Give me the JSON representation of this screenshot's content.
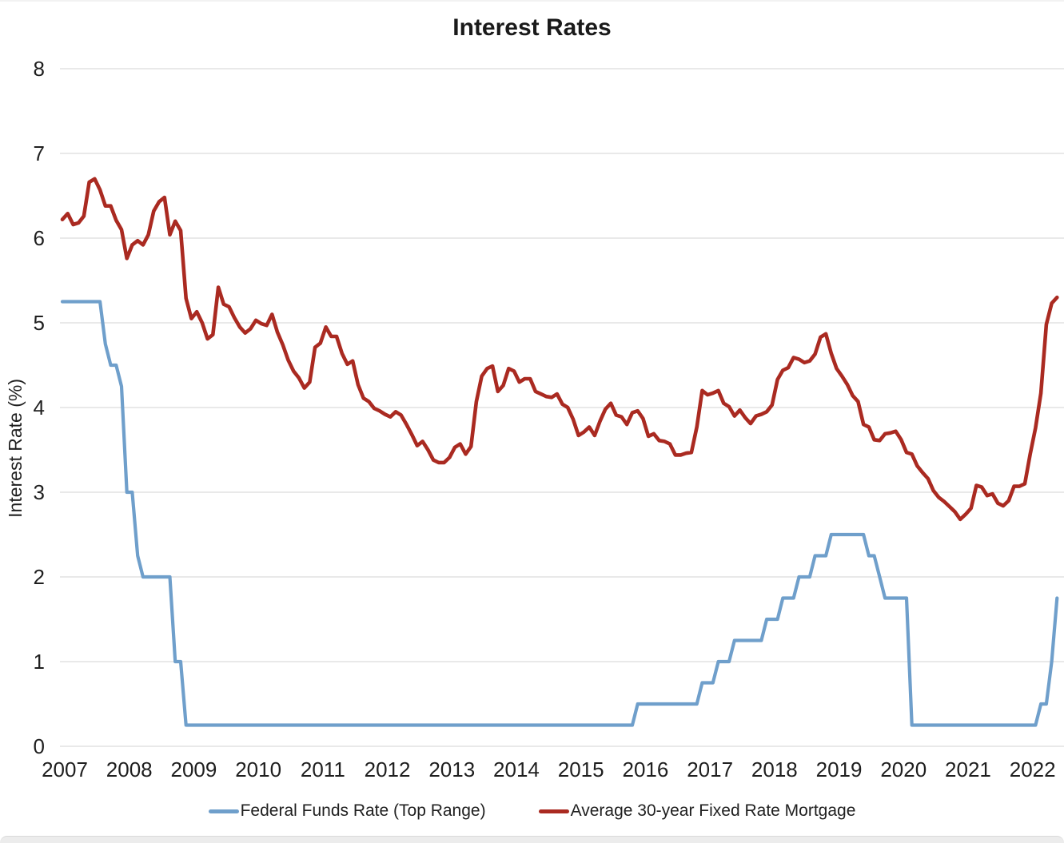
{
  "chart_data": {
    "type": "line",
    "title": "Interest Rates",
    "xlabel": "",
    "ylabel": "Interest Rate (%)",
    "ylim": [
      0,
      8
    ],
    "yticks": [
      0,
      1,
      2,
      3,
      4,
      5,
      6,
      7,
      8
    ],
    "x_tick_labels": [
      "2007",
      "2008",
      "2009",
      "2010",
      "2011",
      "2012",
      "2013",
      "2014",
      "2015",
      "2016",
      "2017",
      "2018",
      "2019",
      "2020",
      "2021",
      "2022"
    ],
    "x_unit": "month",
    "x_start": "2007-01",
    "x_end": "2022-06",
    "grid": "horizontal",
    "grid_color": "#e2e2e2",
    "legend_position": "bottom",
    "series": [
      {
        "name": "Federal Funds Rate (Top Range)",
        "color": "#6f9fcb",
        "values": [
          5.25,
          5.25,
          5.25,
          5.25,
          5.25,
          5.25,
          5.25,
          5.25,
          4.75,
          4.5,
          4.5,
          4.25,
          3,
          3,
          2.25,
          2,
          2,
          2,
          2,
          2,
          2,
          1,
          1,
          0.25,
          0.25,
          0.25,
          0.25,
          0.25,
          0.25,
          0.25,
          0.25,
          0.25,
          0.25,
          0.25,
          0.25,
          0.25,
          0.25,
          0.25,
          0.25,
          0.25,
          0.25,
          0.25,
          0.25,
          0.25,
          0.25,
          0.25,
          0.25,
          0.25,
          0.25,
          0.25,
          0.25,
          0.25,
          0.25,
          0.25,
          0.25,
          0.25,
          0.25,
          0.25,
          0.25,
          0.25,
          0.25,
          0.25,
          0.25,
          0.25,
          0.25,
          0.25,
          0.25,
          0.25,
          0.25,
          0.25,
          0.25,
          0.25,
          0.25,
          0.25,
          0.25,
          0.25,
          0.25,
          0.25,
          0.25,
          0.25,
          0.25,
          0.25,
          0.25,
          0.25,
          0.25,
          0.25,
          0.25,
          0.25,
          0.25,
          0.25,
          0.25,
          0.25,
          0.25,
          0.25,
          0.25,
          0.25,
          0.25,
          0.25,
          0.25,
          0.25,
          0.25,
          0.25,
          0.25,
          0.25,
          0.25,
          0.25,
          0.25,
          0.5,
          0.5,
          0.5,
          0.5,
          0.5,
          0.5,
          0.5,
          0.5,
          0.5,
          0.5,
          0.5,
          0.5,
          0.75,
          0.75,
          0.75,
          1,
          1,
          1,
          1.25,
          1.25,
          1.25,
          1.25,
          1.25,
          1.25,
          1.5,
          1.5,
          1.5,
          1.75,
          1.75,
          1.75,
          2,
          2,
          2,
          2.25,
          2.25,
          2.25,
          2.5,
          2.5,
          2.5,
          2.5,
          2.5,
          2.5,
          2.5,
          2.25,
          2.25,
          2,
          1.75,
          1.75,
          1.75,
          1.75,
          1.75,
          0.25,
          0.25,
          0.25,
          0.25,
          0.25,
          0.25,
          0.25,
          0.25,
          0.25,
          0.25,
          0.25,
          0.25,
          0.25,
          0.25,
          0.25,
          0.25,
          0.25,
          0.25,
          0.25,
          0.25,
          0.25,
          0.25,
          0.25,
          0.25,
          0.5,
          0.5,
          1,
          1.75
        ]
      },
      {
        "name": "Average 30-year Fixed Rate Mortgage",
        "color": "#aa2a21",
        "values": [
          6.22,
          6.29,
          6.16,
          6.18,
          6.26,
          6.66,
          6.7,
          6.57,
          6.38,
          6.38,
          6.21,
          6.1,
          5.76,
          5.92,
          5.97,
          5.92,
          6.04,
          6.32,
          6.43,
          6.48,
          6.04,
          6.2,
          6.09,
          5.29,
          5.05,
          5.13,
          5,
          4.81,
          4.86,
          5.42,
          5.22,
          5.19,
          5.06,
          4.95,
          4.88,
          4.93,
          5.03,
          4.99,
          4.97,
          5.1,
          4.89,
          4.74,
          4.56,
          4.43,
          4.35,
          4.23,
          4.3,
          4.71,
          4.76,
          4.95,
          4.84,
          4.84,
          4.64,
          4.51,
          4.55,
          4.27,
          4.11,
          4.07,
          3.99,
          3.96,
          3.92,
          3.89,
          3.95,
          3.91,
          3.8,
          3.68,
          3.55,
          3.6,
          3.5,
          3.38,
          3.35,
          3.35,
          3.41,
          3.53,
          3.57,
          3.45,
          3.54,
          4.07,
          4.37,
          4.46,
          4.49,
          4.19,
          4.26,
          4.46,
          4.43,
          4.3,
          4.34,
          4.34,
          4.19,
          4.16,
          4.13,
          4.12,
          4.16,
          4.04,
          4,
          3.86,
          3.67,
          3.71,
          3.77,
          3.67,
          3.84,
          3.98,
          4.05,
          3.91,
          3.89,
          3.8,
          3.94,
          3.96,
          3.87,
          3.66,
          3.69,
          3.61,
          3.6,
          3.57,
          3.44,
          3.44,
          3.46,
          3.47,
          3.77,
          4.2,
          4.15,
          4.17,
          4.2,
          4.05,
          4.01,
          3.9,
          3.97,
          3.88,
          3.81,
          3.9,
          3.92,
          3.95,
          4.03,
          4.33,
          4.44,
          4.47,
          4.59,
          4.57,
          4.53,
          4.55,
          4.63,
          4.83,
          4.87,
          4.64,
          4.46,
          4.37,
          4.27,
          4.14,
          4.07,
          3.8,
          3.77,
          3.62,
          3.61,
          3.69,
          3.7,
          3.72,
          3.62,
          3.47,
          3.45,
          3.31,
          3.23,
          3.16,
          3.02,
          2.94,
          2.89,
          2.83,
          2.77,
          2.68,
          2.74,
          2.81,
          3.08,
          3.06,
          2.96,
          2.98,
          2.87,
          2.84,
          2.9,
          3.07,
          3.07,
          3.1,
          3.45,
          3.76,
          4.17,
          4.98,
          5.23,
          5.3
        ]
      }
    ]
  }
}
